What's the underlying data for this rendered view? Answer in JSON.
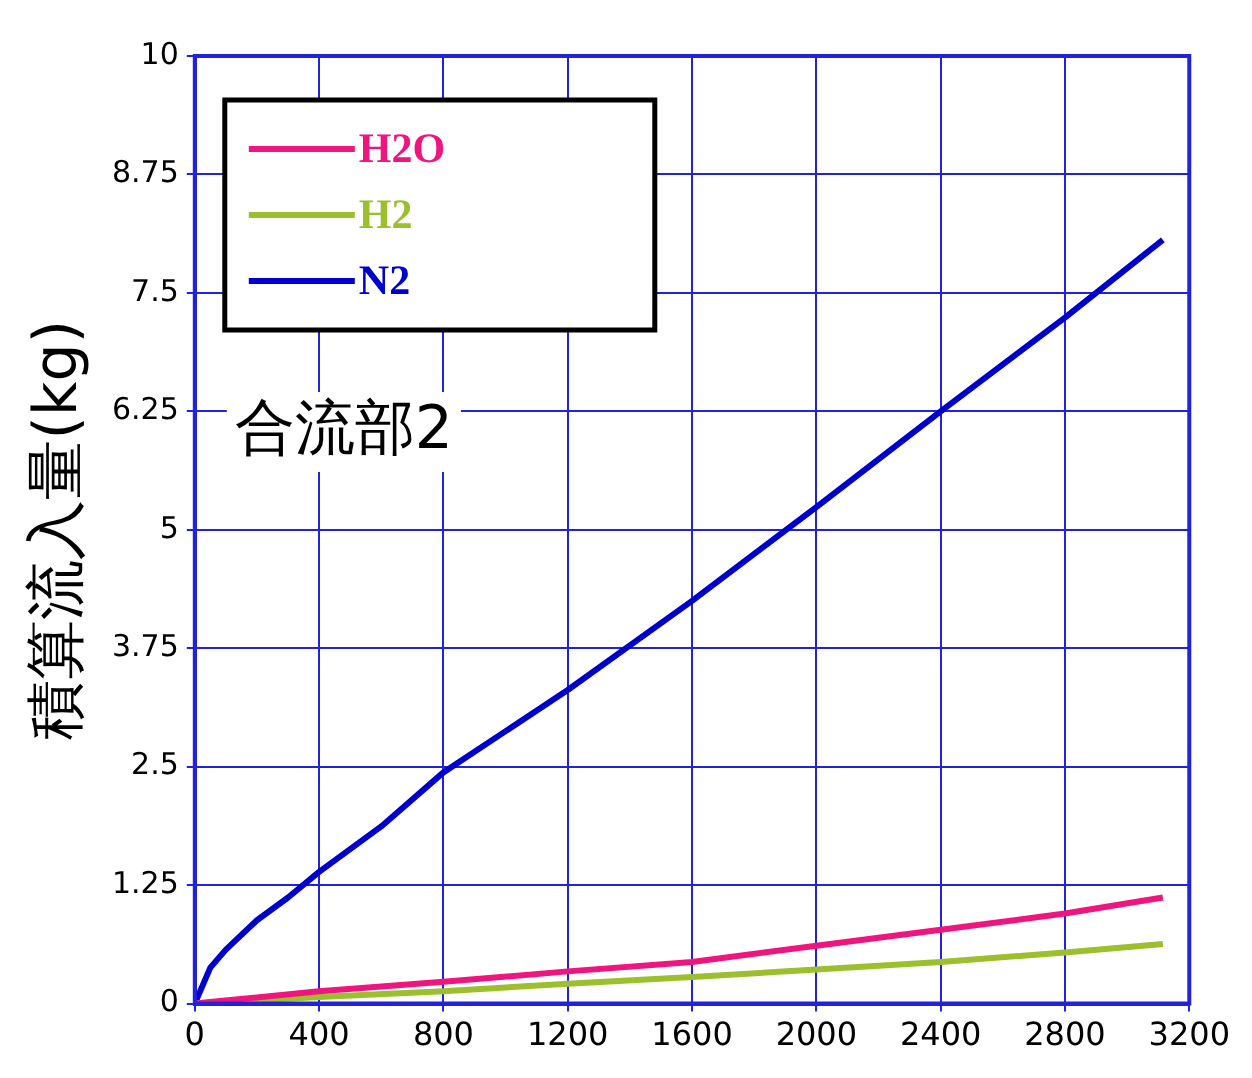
{
  "chart_data": {
    "type": "line",
    "ylabel": "積算流入量(kg)",
    "annotations": [
      "合流部2"
    ],
    "xlim": [
      0,
      3200
    ],
    "xticks": [
      0,
      400,
      800,
      1200,
      1600,
      2000,
      2400,
      2800,
      3200
    ],
    "ylim": [
      0,
      10
    ],
    "yticks": [
      0,
      1.25,
      2.5,
      3.75,
      5,
      6.25,
      7.5,
      8.75,
      10
    ],
    "grid": true,
    "legend": "top left",
    "line_style": "solid",
    "marker": "none",
    "series": [
      {
        "name": "H2O",
        "color": "#f0147f",
        "x": [
          0,
          400,
          800,
          1200,
          1600,
          2000,
          2400,
          2800,
          3115
        ],
        "values": [
          0,
          0.13,
          0.23,
          0.34,
          0.44,
          0.61,
          0.78,
          0.95,
          1.12
        ]
      },
      {
        "name": "H2",
        "color": "#9cbf2e",
        "x": [
          0,
          400,
          800,
          1200,
          1600,
          2000,
          2400,
          2800,
          3115
        ],
        "values": [
          0,
          0.07,
          0.13,
          0.21,
          0.28,
          0.36,
          0.44,
          0.54,
          0.63
        ]
      },
      {
        "name": "N2",
        "color": "#0000cc",
        "x": [
          0,
          50,
          100,
          200,
          300,
          400,
          600,
          800,
          1200,
          1600,
          2000,
          2400,
          2800,
          3115
        ],
        "values": [
          0,
          0.38,
          0.57,
          0.88,
          1.12,
          1.39,
          1.87,
          2.44,
          3.31,
          4.25,
          5.24,
          6.25,
          7.24,
          8.06
        ]
      }
    ]
  }
}
